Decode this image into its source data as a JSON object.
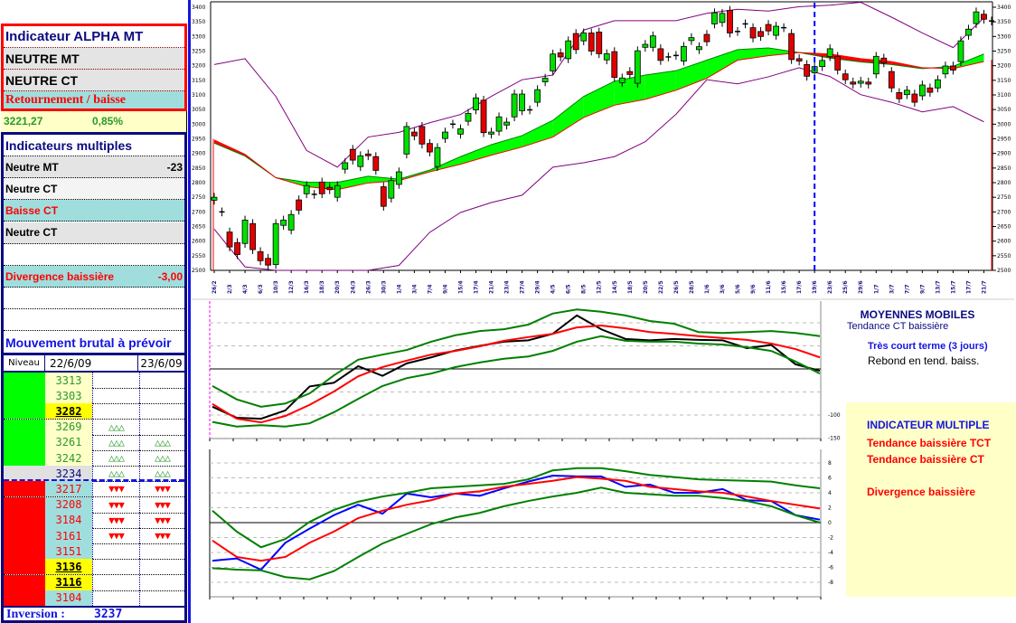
{
  "alpha": {
    "title": "Indicateur ALPHA MT",
    "mt": "NEUTRE MT",
    "ct": "NEUTRE CT",
    "signal": "Retournement / baisse"
  },
  "quote": {
    "price": "3221,27",
    "change": "0,85%"
  },
  "multi": {
    "title": "Indicateurs multiples",
    "rows": [
      {
        "label": "Neutre MT",
        "value": "-23",
        "color": "#000000",
        "bg": "#e4e4e4"
      },
      {
        "label": "Neutre CT",
        "value": "",
        "color": "#000000",
        "bg": "#f4f4f4"
      },
      {
        "label": "Baisse CT",
        "value": "",
        "color": "#ff0000",
        "bg": "#a0dede"
      },
      {
        "label": "Neutre CT",
        "value": "",
        "color": "#000000",
        "bg": "#e4e4e4"
      },
      {
        "label": "",
        "value": "",
        "color": "#000000",
        "bg": "#ffffff"
      },
      {
        "label": "Divergence baissière",
        "value": "-3,00",
        "color": "#ff0000",
        "bg": "#a0dede"
      },
      {
        "label": "",
        "value": "",
        "color": "#000000",
        "bg": "#ffffff"
      },
      {
        "label": "",
        "value": "",
        "color": "#000000",
        "bg": "#ffffff"
      }
    ],
    "footer": "Mouvement brutal à prévoir"
  },
  "levels": {
    "header": {
      "niveau": "Niveau",
      "d1": "22/6/09",
      "d2": "23/6/09"
    },
    "rows": [
      {
        "v": "3313",
        "zone": "up",
        "hl": false,
        "m1": "",
        "m2": ""
      },
      {
        "v": "3303",
        "zone": "up",
        "hl": false,
        "m1": "",
        "m2": ""
      },
      {
        "v": "3282",
        "zone": "up",
        "hl": true,
        "m1": "",
        "m2": ""
      },
      {
        "v": "3269",
        "zone": "up",
        "hl": false,
        "m1": "△△△",
        "m2": ""
      },
      {
        "v": "3261",
        "zone": "up",
        "hl": false,
        "m1": "△△△",
        "m2": "△△△"
      },
      {
        "v": "3242",
        "zone": "up",
        "hl": false,
        "m1": "△△△",
        "m2": "△△△"
      },
      {
        "v": "3234",
        "zone": "mid",
        "hl": false,
        "m1": "△△△",
        "m2": "△△△"
      },
      {
        "v": "3217",
        "zone": "down",
        "hl": false,
        "m1": "▼▼▼",
        "m2": "▼▼▼"
      },
      {
        "v": "3208",
        "zone": "down",
        "hl": false,
        "m1": "▼▼▼",
        "m2": "▼▼▼"
      },
      {
        "v": "3184",
        "zone": "down",
        "hl": false,
        "m1": "▼▼▼",
        "m2": "▼▼▼"
      },
      {
        "v": "3161",
        "zone": "down",
        "hl": false,
        "m1": "▼▼▼",
        "m2": "▼▼▼"
      },
      {
        "v": "3151",
        "zone": "down",
        "hl": false,
        "m1": "",
        "m2": ""
      },
      {
        "v": "3136",
        "zone": "down",
        "hl": true,
        "m1": "",
        "m2": ""
      },
      {
        "v": "3116",
        "zone": "down",
        "hl": true,
        "m1": "",
        "m2": ""
      },
      {
        "v": "3104",
        "zone": "down",
        "hl": false,
        "m1": "",
        "m2": ""
      }
    ],
    "inversion_label": "Inversion :",
    "inversion_value": "3237"
  },
  "panels": {
    "mm_title": "MOYENNES MOBILES",
    "mm_trend": "Tendance CT baissière",
    "tct_title": "Très court terme (3 jours)",
    "tct_text": "Rebond en tend. baiss.",
    "im_title": "INDICATEUR MULTIPLE",
    "im_lines": [
      "Tendance baissière TCT",
      "Tendance baissière CT",
      "",
      "Divergence baissière"
    ]
  },
  "colors": {
    "up": "#00ff00",
    "down": "#ff0000",
    "candle_up": "#00e000",
    "candle_down": "#e00000",
    "band": "#800080",
    "ribbon_up": "#00ff00",
    "ribbon_down": "#ff0000",
    "marker": "#0000ff"
  },
  "chart_data": [
    {
      "type": "candlestick",
      "ylim": [
        2500,
        3400
      ],
      "yticks": [
        "2500",
        "2550",
        "2600",
        "2650",
        "2700",
        "2750",
        "2800",
        "2850",
        "2900",
        "2950",
        "3000",
        "3050",
        "3100",
        "3150",
        "3200",
        "3250",
        "3300",
        "3350",
        "3400"
      ],
      "xticks": [
        "26/2",
        "2/3",
        "4/3",
        "6/3",
        "10/3",
        "12/3",
        "16/3",
        "18/3",
        "20/3",
        "24/3",
        "26/3",
        "30/3",
        "1/4",
        "3/4",
        "7/4",
        "9/4",
        "15/4",
        "17/4",
        "21/4",
        "23/4",
        "27/4",
        "29/4",
        "4/5",
        "6/5",
        "8/5",
        "12/5",
        "14/5",
        "18/5",
        "20/5",
        "22/5",
        "26/5",
        "28/5",
        "1/6",
        "3/6",
        "5/6",
        "9/6",
        "11/6",
        "15/6",
        "17/6",
        "19/6",
        "23/6",
        "25/6",
        "29/6",
        "1/7",
        "3/7",
        "7/7",
        "9/7",
        "13/7",
        "15/7",
        "17/7",
        "21/7"
      ],
      "marker_date": "19/6",
      "oc": [
        [
          2740,
          2750
        ],
        [
          2700,
          2700
        ],
        [
          2631,
          2580
        ],
        [
          2595,
          2554
        ],
        [
          2592,
          2672
        ],
        [
          2660,
          2571
        ],
        [
          2564,
          2533
        ],
        [
          2541,
          2518
        ],
        [
          2520,
          2660
        ],
        [
          2654,
          2672
        ],
        [
          2638,
          2691
        ],
        [
          2741,
          2706
        ],
        [
          2762,
          2790
        ],
        [
          2760,
          2760
        ],
        [
          2802,
          2762
        ],
        [
          2784,
          2776
        ],
        [
          2750,
          2790
        ],
        [
          2846,
          2868
        ],
        [
          2914,
          2877
        ],
        [
          2855,
          2892
        ],
        [
          2898,
          2892
        ],
        [
          2889,
          2842
        ],
        [
          2786,
          2719
        ],
        [
          2747,
          2807
        ],
        [
          2794,
          2837
        ],
        [
          2898,
          2992
        ],
        [
          2973,
          2960
        ],
        [
          2992,
          2932
        ],
        [
          2934,
          2905
        ],
        [
          2855,
          2920
        ],
        [
          2951,
          2973
        ],
        [
          3000,
          3000
        ],
        [
          2966,
          2984
        ],
        [
          3010,
          3037
        ],
        [
          3049,
          3090
        ],
        [
          3082,
          2971
        ],
        [
          2966,
          2973
        ],
        [
          2976,
          3025
        ],
        [
          2997,
          3007
        ],
        [
          3025,
          3103
        ],
        [
          3046,
          3103
        ],
        [
          3049,
          3049
        ],
        [
          3075,
          3118
        ],
        [
          3145,
          3157
        ],
        [
          3182,
          3240
        ],
        [
          3244,
          3230
        ],
        [
          3224,
          3285
        ],
        [
          3310,
          3255
        ],
        [
          3285,
          3312
        ],
        [
          3312,
          3250
        ],
        [
          3315,
          3241
        ],
        [
          3220,
          3241
        ],
        [
          3248,
          3160
        ],
        [
          3142,
          3158
        ],
        [
          3180,
          3170
        ],
        [
          3140,
          3251
        ],
        [
          3263,
          3273
        ],
        [
          3263,
          3302
        ],
        [
          3258,
          3218
        ],
        [
          3230,
          3230
        ],
        [
          3235,
          3235
        ],
        [
          3216,
          3266
        ],
        [
          3286,
          3296
        ],
        [
          3255,
          3265
        ],
        [
          3307,
          3282
        ],
        [
          3343,
          3381
        ],
        [
          3348,
          3379
        ],
        [
          3389,
          3312
        ],
        [
          3317,
          3317
        ],
        [
          3343,
          3343
        ],
        [
          3330,
          3295
        ],
        [
          3317,
          3300
        ],
        [
          3341,
          3319
        ],
        [
          3304,
          3335
        ],
        [
          3330,
          3330
        ],
        [
          3310,
          3221
        ],
        [
          3224,
          3216
        ],
        [
          3204,
          3164
        ],
        [
          3176,
          3197
        ],
        [
          3197,
          3218
        ],
        [
          3231,
          3258
        ],
        [
          3232,
          3185
        ],
        [
          3172,
          3152
        ],
        [
          3144,
          3137
        ],
        [
          3140,
          3147
        ],
        [
          3144,
          3137
        ],
        [
          3172,
          3232
        ],
        [
          3226,
          3210
        ],
        [
          3180,
          3124
        ],
        [
          3108,
          3087
        ],
        [
          3101,
          3116
        ],
        [
          3103,
          3075
        ],
        [
          3097,
          3134
        ],
        [
          3124,
          3109
        ],
        [
          3124,
          3152
        ],
        [
          3172,
          3199
        ],
        [
          3199,
          3185
        ],
        [
          3214,
          3285
        ],
        [
          3304,
          3325
        ],
        [
          3344,
          3384
        ],
        [
          3376,
          3359
        ],
        [
          3353,
          3353
        ]
      ],
      "upper_band": [
        3204,
        3224,
        3095,
        2910,
        2853,
        2956,
        2972,
        3005,
        3033,
        3095,
        3152,
        3168,
        3322,
        3354,
        3354,
        3354,
        3379,
        3393,
        3387,
        3402,
        3407,
        3417,
        3366,
        3312,
        3262,
        3364
      ],
      "lower_band": [
        2641,
        2512,
        2490,
        2480,
        2470,
        2490,
        2517,
        2630,
        2698,
        2732,
        2757,
        2853,
        2868,
        2889,
        2940,
        3034,
        3152,
        3138,
        3162,
        3193,
        3163,
        3101,
        3075,
        3042,
        3060,
        3008
      ],
      "ma_fast": [
        2935,
        2891,
        2817,
        2801,
        2801,
        2822,
        2812,
        2843,
        2889,
        2930,
        2961,
        3013,
        3095,
        3147,
        3168,
        3183,
        3219,
        3255,
        3261,
        3245,
        3226,
        3213,
        3204,
        3190,
        3198,
        3240
      ],
      "ma_slow": [
        2946,
        2897,
        2817,
        2786,
        2776,
        2799,
        2807,
        2837,
        2863,
        2894,
        2922,
        2956,
        3023,
        3065,
        3085,
        3116,
        3157,
        3219,
        3234,
        3245,
        3240,
        3224,
        3214,
        3193,
        3190,
        3214
      ]
    },
    {
      "type": "line",
      "ylim": [
        -150,
        150
      ],
      "yticks": [
        "100",
        "50",
        "0",
        "-50",
        "-100",
        "-150"
      ],
      "x_range": [
        "26/2",
        "19/6"
      ],
      "series": [
        {
          "color": "#000000",
          "values": [
            -82,
            -106,
            -108,
            -90,
            -38,
            -30,
            6,
            -15,
            12,
            25,
            40,
            50,
            59,
            62,
            76,
            116,
            86,
            65,
            62,
            65,
            63,
            62,
            45,
            52,
            10,
            -4
          ]
        },
        {
          "color": "#ff0000",
          "values": [
            -76,
            -108,
            -116,
            -102,
            -78,
            -49,
            -16,
            4,
            18,
            31,
            39,
            49,
            61,
            69,
            76,
            90,
            94,
            88,
            80,
            76,
            71,
            67,
            63,
            55,
            43,
            25
          ]
        },
        {
          "color": "#008000",
          "values": [
            -37,
            -66,
            -82,
            -75,
            -53,
            -14,
            20,
            31,
            41,
            59,
            73,
            82,
            86,
            96,
            120,
            129,
            124,
            116,
            104,
            98,
            80,
            78,
            80,
            82,
            78,
            71
          ]
        },
        {
          "color": "#008000",
          "values": [
            -115,
            -125,
            -122,
            -125,
            -118,
            -94,
            -65,
            -37,
            -20,
            -10,
            4,
            14,
            22,
            27,
            39,
            59,
            71,
            61,
            59,
            59,
            55,
            53,
            47,
            39,
            16,
            -10
          ]
        }
      ]
    },
    {
      "type": "line",
      "ylim": [
        -10,
        10
      ],
      "yticks": [
        "8",
        "6",
        "4",
        "2",
        "0",
        "-2",
        "-4",
        "-6",
        "-8"
      ],
      "x_range": [
        "26/2",
        "19/6"
      ],
      "series": [
        {
          "color": "#0000ff",
          "values": [
            -5.1,
            -4.8,
            -6.3,
            -2.7,
            -0.8,
            1.0,
            2.4,
            1.2,
            3.9,
            3.4,
            3.9,
            3.6,
            4.6,
            5.5,
            6.3,
            6.2,
            6.2,
            4.8,
            5.1,
            4.0,
            4.0,
            4.5,
            3.0,
            2.9,
            1.0,
            0.4
          ]
        },
        {
          "color": "#ff0000",
          "values": [
            -2.4,
            -4.6,
            -5.1,
            -4.6,
            -2.7,
            -1.2,
            0.6,
            1.6,
            2.4,
            3.0,
            3.9,
            4.2,
            4.8,
            5.2,
            5.6,
            6.1,
            5.9,
            5.6,
            4.8,
            4.5,
            4.2,
            4.0,
            3.5,
            2.9,
            2.4,
            1.9
          ]
        },
        {
          "color": "#008000",
          "values": [
            1.6,
            -1.2,
            -3.3,
            -2.2,
            0.1,
            1.7,
            2.8,
            3.5,
            4.0,
            4.6,
            4.8,
            5.0,
            5.2,
            5.8,
            7.0,
            7.3,
            7.3,
            6.9,
            6.4,
            6.1,
            5.8,
            5.7,
            5.6,
            5.5,
            5.0,
            4.6
          ]
        },
        {
          "color": "#008000",
          "values": [
            -6.1,
            -6.3,
            -6.4,
            -7.3,
            -7.6,
            -6.5,
            -4.6,
            -2.8,
            -1.5,
            -0.2,
            0.7,
            1.3,
            2.2,
            2.9,
            3.5,
            4.0,
            4.7,
            4.0,
            3.8,
            3.6,
            3.6,
            3.3,
            2.9,
            2.2,
            1.0,
            0
          ]
        }
      ]
    }
  ]
}
